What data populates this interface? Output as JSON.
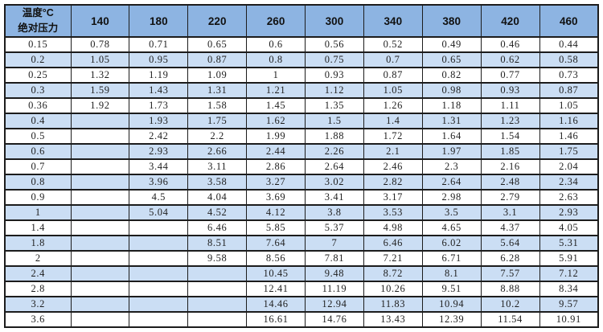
{
  "colors": {
    "header_bg": "#8DB4E2",
    "stripe_bg": "#CBDEF4",
    "border": "#1c1c1c",
    "text": "#1f1f1f",
    "background": "#ffffff"
  },
  "chart_data": {
    "type": "table",
    "corner": {
      "line1": "温度°C",
      "line2": "绝对压力"
    },
    "columns": [
      "140",
      "180",
      "220",
      "260",
      "300",
      "340",
      "380",
      "420",
      "460"
    ],
    "rows": [
      {
        "pressure": "0.15",
        "values": [
          "0.78",
          "0.71",
          "0.65",
          "0.6",
          "0.56",
          "0.52",
          "0.49",
          "0.46",
          "0.44"
        ]
      },
      {
        "pressure": "0.2",
        "values": [
          "1.05",
          "0.95",
          "0.87",
          "0.8",
          "0.75",
          "0.7",
          "0.65",
          "0.62",
          "0.58"
        ]
      },
      {
        "pressure": "0.25",
        "values": [
          "1.32",
          "1.19",
          "1.09",
          "1",
          "0.93",
          "0.87",
          "0.82",
          "0.77",
          "0.73"
        ]
      },
      {
        "pressure": "0.3",
        "values": [
          "1.59",
          "1.43",
          "1.31",
          "1.21",
          "1.12",
          "1.05",
          "0.98",
          "0.93",
          "0.87"
        ]
      },
      {
        "pressure": "0.36",
        "values": [
          "1.92",
          "1.73",
          "1.58",
          "1.45",
          "1.35",
          "1.26",
          "1.18",
          "1.11",
          "1.05"
        ]
      },
      {
        "pressure": "0.4",
        "values": [
          "",
          "1.93",
          "1.75",
          "1.62",
          "1.5",
          "1.4",
          "1.31",
          "1.23",
          "1.16"
        ]
      },
      {
        "pressure": "0.5",
        "values": [
          "",
          "2.42",
          "2.2",
          "1.99",
          "1.88",
          "1.72",
          "1.64",
          "1.54",
          "1.46"
        ]
      },
      {
        "pressure": "0.6",
        "values": [
          "",
          "2.93",
          "2.66",
          "2.44",
          "2.26",
          "2.1",
          "1.97",
          "1.85",
          "1.75"
        ]
      },
      {
        "pressure": "0.7",
        "values": [
          "",
          "3.44",
          "3.11",
          "2.86",
          "2.64",
          "2.46",
          "2.3",
          "2.16",
          "2.04"
        ]
      },
      {
        "pressure": "0.8",
        "values": [
          "",
          "3.96",
          "3.58",
          "3.27",
          "3.02",
          "2.82",
          "2.64",
          "2.48",
          "2.34"
        ]
      },
      {
        "pressure": "0.9",
        "values": [
          "",
          "4.5",
          "4.04",
          "3.69",
          "3.41",
          "3.17",
          "2.98",
          "2.79",
          "2.63"
        ]
      },
      {
        "pressure": "1",
        "values": [
          "",
          "5.04",
          "4.52",
          "4.12",
          "3.8",
          "3.53",
          "3.5",
          "3.1",
          "2.93"
        ]
      },
      {
        "pressure": "1.4",
        "values": [
          "",
          "",
          "6.46",
          "5.85",
          "5.37",
          "4.98",
          "4.65",
          "4.37",
          "4.05"
        ]
      },
      {
        "pressure": "1.8",
        "values": [
          "",
          "",
          "8.51",
          "7.64",
          "7",
          "6.46",
          "6.02",
          "5.64",
          "5.31"
        ]
      },
      {
        "pressure": "2",
        "values": [
          "",
          "",
          "9.58",
          "8.56",
          "7.81",
          "7.21",
          "6.71",
          "6.28",
          "5.91"
        ]
      },
      {
        "pressure": "2.4",
        "values": [
          "",
          "",
          "",
          "10.45",
          "9.48",
          "8.72",
          "8.1",
          "7.57",
          "7.12"
        ]
      },
      {
        "pressure": "2.8",
        "values": [
          "",
          "",
          "",
          "12.41",
          "11.19",
          "10.26",
          "9.51",
          "8.88",
          "8.34"
        ]
      },
      {
        "pressure": "3.2",
        "values": [
          "",
          "",
          "",
          "14.46",
          "12.94",
          "11.83",
          "10.94",
          "10.2",
          "9.57"
        ]
      },
      {
        "pressure": "3.6",
        "values": [
          "",
          "",
          "",
          "16.61",
          "14.76",
          "13.43",
          "12.39",
          "11.54",
          "10.91"
        ]
      }
    ]
  }
}
